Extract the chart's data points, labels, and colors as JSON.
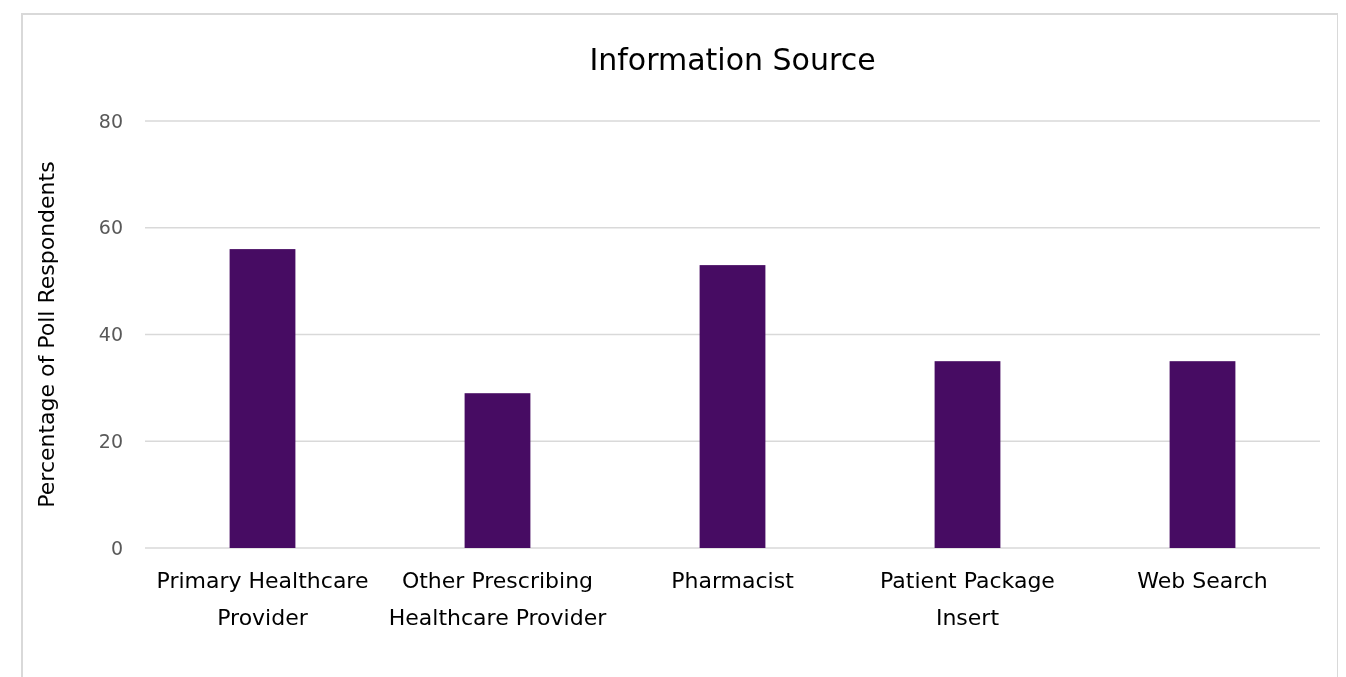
{
  "chart_data": {
    "type": "bar",
    "title": "Information Source",
    "ylabel": "Percentage of Poll Respondents",
    "categories": [
      "Primary Healthcare Provider",
      "Other Prescribing Healthcare Provider",
      "Pharmacist",
      "Patient Package Insert",
      "Web Search"
    ],
    "values": [
      56,
      29,
      53,
      35,
      35
    ],
    "color": "#470c63",
    "ylim": [
      0,
      80
    ],
    "yticks": [
      0,
      20,
      40,
      60,
      80
    ],
    "grid": "y"
  }
}
